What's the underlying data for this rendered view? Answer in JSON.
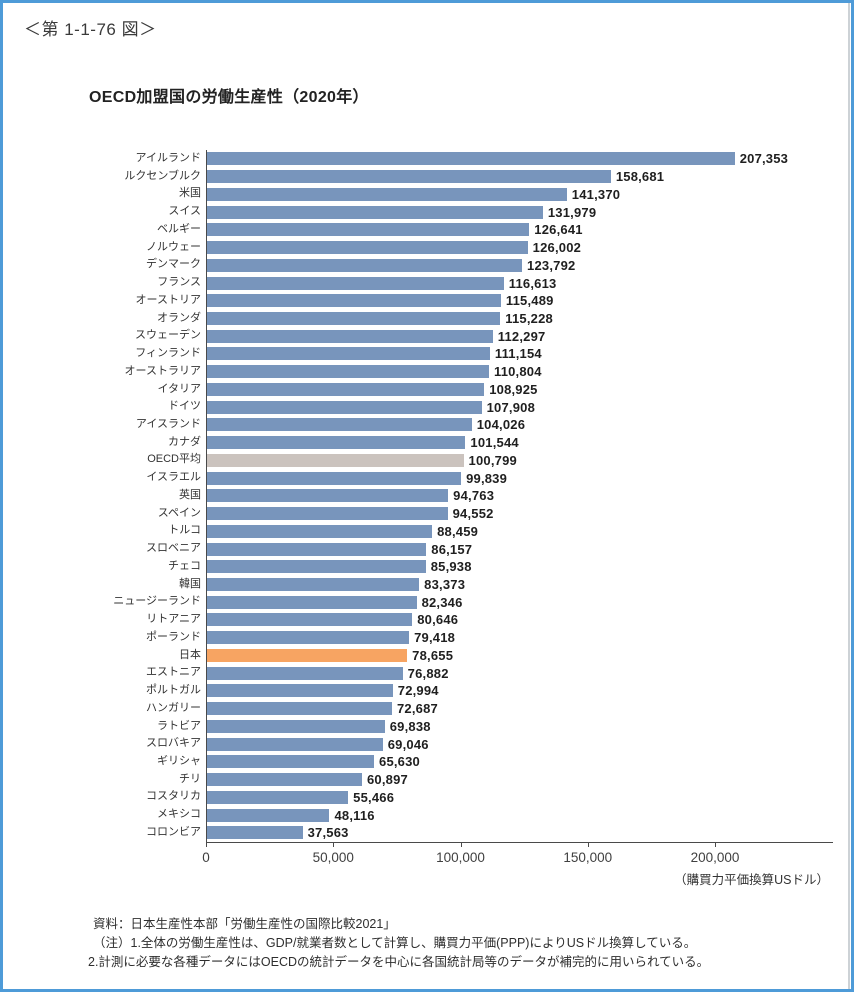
{
  "page": {
    "figure_label": "＜第 1-1-76 図＞",
    "border_color": "#4e9bd8"
  },
  "chart_data": {
    "type": "bar",
    "orientation": "horizontal",
    "title": "OECD加盟国の労働生産性（2020年）",
    "categories": [
      "アイルランド",
      "ルクセンブルク",
      "米国",
      "スイス",
      "ベルギー",
      "ノルウェー",
      "デンマーク",
      "フランス",
      "オーストリア",
      "オランダ",
      "スウェーデン",
      "フィンランド",
      "オーストラリア",
      "イタリア",
      "ドイツ",
      "アイスランド",
      "カナダ",
      "OECD平均",
      "イスラエル",
      "英国",
      "スペイン",
      "トルコ",
      "スロベニア",
      "チェコ",
      "韓国",
      "ニュージーランド",
      "リトアニア",
      "ポーランド",
      "日本",
      "エストニア",
      "ポルトガル",
      "ハンガリー",
      "ラトビア",
      "スロバキア",
      "ギリシャ",
      "チリ",
      "コスタリカ",
      "メキシコ",
      "コロンビア"
    ],
    "values": [
      207353,
      158681,
      141370,
      131979,
      126641,
      126002,
      123792,
      116613,
      115489,
      115228,
      112297,
      111154,
      110804,
      108925,
      107908,
      104026,
      101544,
      100799,
      99839,
      94763,
      94552,
      88459,
      86157,
      85938,
      83373,
      82346,
      80646,
      79418,
      78655,
      76882,
      72994,
      72687,
      69838,
      69046,
      65630,
      60897,
      55466,
      48116,
      37563
    ],
    "highlight": {
      "oecd_average_index": 17,
      "japan_index": 28
    },
    "colors": {
      "default": "#7895bc",
      "oecd_average": "#cbc3be",
      "japan": "#f7a462"
    },
    "x_axis": {
      "ticks": [
        0,
        50000,
        100000,
        150000,
        200000
      ],
      "tick_labels": [
        "0",
        "50,000",
        "100,000",
        "150,000",
        "200,000"
      ],
      "unit_label": "（購買力平価換算USドル）",
      "grid": false
    },
    "legend": null,
    "data_labels": true
  },
  "footnotes": {
    "source": "資料：日本生産性本部「労働生産性の国際比較2021」",
    "note1": "（注）1.全体の労働生産性は、GDP/就業者数として計算し、購買力平価(PPP)によりUSドル換算している。",
    "note2": "2.計測に必要な各種データにはOECDの統計データを中心に各国統計局等のデータが補完的に用いられている。"
  }
}
